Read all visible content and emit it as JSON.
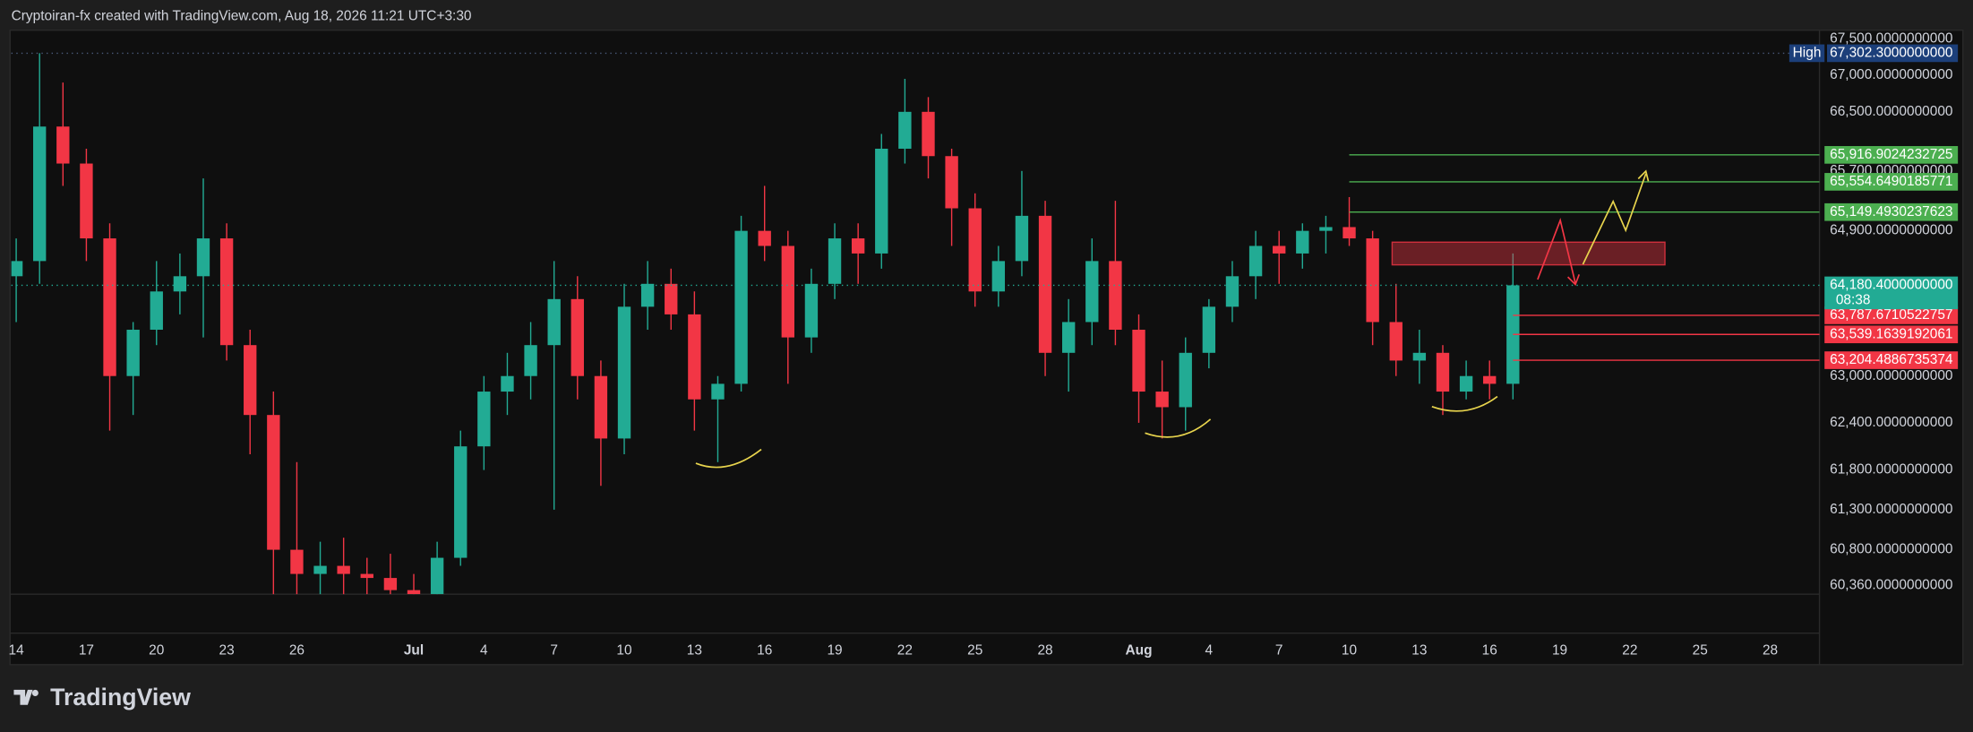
{
  "header": "Cryptoiran-fx created with TradingView.com, Aug 18, 2026 11:21 UTC+3:30",
  "footer_logo": "TradingView",
  "chart_data": {
    "type": "candlestick",
    "log_scale": true,
    "up_color": "#22ab94",
    "down_color": "#f23645",
    "x": [
      "2026-06-14",
      "2026-06-15",
      "2026-06-16",
      "2026-06-17",
      "2026-06-18",
      "2026-06-19",
      "2026-06-20",
      "2026-06-21",
      "2026-06-22",
      "2026-06-23",
      "2026-06-24",
      "2026-06-25",
      "2026-06-26",
      "2026-06-27",
      "2026-06-28",
      "2026-06-29",
      "2026-06-30",
      "2026-07-01",
      "2026-07-02",
      "2026-07-03",
      "2026-07-04",
      "2026-07-05",
      "2026-07-06",
      "2026-07-07",
      "2026-07-08",
      "2026-07-09",
      "2026-07-10",
      "2026-07-11",
      "2026-07-12",
      "2026-07-13",
      "2026-07-14",
      "2026-07-15",
      "2026-07-16",
      "2026-07-17",
      "2026-07-18",
      "2026-07-19",
      "2026-07-20",
      "2026-07-21",
      "2026-07-22",
      "2026-07-23",
      "2026-07-24",
      "2026-07-25",
      "2026-07-26",
      "2026-07-27",
      "2026-07-28",
      "2026-07-29",
      "2026-07-30",
      "2026-07-31",
      "2026-08-01",
      "2026-08-02",
      "2026-08-03",
      "2026-08-04",
      "2026-08-05",
      "2026-08-06",
      "2026-08-07",
      "2026-08-08",
      "2026-08-09",
      "2026-08-10",
      "2026-08-11",
      "2026-08-12",
      "2026-08-13",
      "2026-08-14",
      "2026-08-15",
      "2026-08-16",
      "2026-08-17"
    ],
    "open": [
      64300,
      64500,
      66300,
      65800,
      64800,
      63000,
      63600,
      64100,
      64300,
      64800,
      63400,
      62500,
      60800,
      60500,
      60600,
      60500,
      60450,
      60300,
      60250,
      60700,
      62100,
      62800,
      63000,
      63400,
      64000,
      63000,
      62200,
      63900,
      64200,
      63800,
      62700,
      62900,
      64900,
      64700,
      63500,
      64200,
      64800,
      64600,
      66000,
      66500,
      65900,
      65200,
      64100,
      64500,
      65100,
      63300,
      63700,
      64500,
      63600,
      62800,
      62600,
      63300,
      63900,
      64300,
      64700,
      64600,
      64900,
      64950,
      64800,
      63700,
      63200,
      63300,
      62800,
      63000,
      62900
    ],
    "high": [
      64800,
      67302.3,
      66900,
      66000,
      65000,
      63700,
      64500,
      64600,
      65600,
      65000,
      63600,
      62800,
      61900,
      60900,
      60950,
      60700,
      60750,
      60500,
      60900,
      62300,
      63000,
      63300,
      63700,
      64500,
      64300,
      63200,
      64200,
      64500,
      64400,
      64100,
      63000,
      65100,
      65500,
      64900,
      64400,
      65000,
      65000,
      66200,
      66950,
      66700,
      66000,
      65400,
      64700,
      65700,
      65300,
      64000,
      64800,
      65300,
      63800,
      63200,
      63500,
      64000,
      64500,
      64900,
      64900,
      65000,
      65100,
      65350,
      64900,
      64200,
      63600,
      63400,
      63200,
      63200,
      64600
    ],
    "low": [
      63700,
      64200,
      65500,
      64500,
      62300,
      62500,
      63400,
      63800,
      63500,
      63200,
      62000,
      60100,
      60200,
      60150,
      60200,
      60150,
      60100,
      60100,
      60100,
      60600,
      61800,
      62500,
      62700,
      61300,
      62700,
      61600,
      62000,
      63600,
      63600,
      62300,
      61900,
      62800,
      64500,
      62900,
      63300,
      64000,
      64200,
      64400,
      65800,
      65600,
      64700,
      63900,
      63900,
      64300,
      63000,
      62800,
      63400,
      63400,
      62400,
      62200,
      62300,
      63100,
      63700,
      64000,
      64200,
      64400,
      64600,
      64700,
      63400,
      63000,
      62900,
      62500,
      62700,
      62700,
      62700
    ],
    "close": [
      64500,
      66300,
      65800,
      64800,
      63000,
      63600,
      64100,
      64300,
      64800,
      63400,
      62500,
      60800,
      60500,
      60600,
      60500,
      60450,
      60300,
      60250,
      60700,
      62100,
      62800,
      63000,
      63400,
      64000,
      63000,
      62200,
      63900,
      64200,
      63800,
      62700,
      62900,
      64900,
      64700,
      63500,
      64200,
      64800,
      64600,
      66000,
      66500,
      65900,
      65200,
      64100,
      64500,
      65100,
      63300,
      63700,
      64500,
      63600,
      62800,
      62600,
      63300,
      63900,
      64300,
      64700,
      64600,
      64900,
      64950,
      64800,
      63700,
      63200,
      63300,
      62800,
      63000,
      62900,
      64180.4
    ],
    "xlim": [
      "2026-06-13T19:00Z",
      "2026-08-28T17:00Z"
    ],
    "ylim": [
      60250,
      67620
    ],
    "xticks": [
      {
        "value": "2026-06-14",
        "label": "14"
      },
      {
        "value": "2026-06-17",
        "label": "17"
      },
      {
        "value": "2026-06-20",
        "label": "20"
      },
      {
        "value": "2026-06-23",
        "label": "23"
      },
      {
        "value": "2026-06-26",
        "label": "26"
      },
      {
        "value": "2026-07-01",
        "label": "Jul"
      },
      {
        "value": "2026-07-04",
        "label": "4"
      },
      {
        "value": "2026-07-07",
        "label": "7"
      },
      {
        "value": "2026-07-10",
        "label": "10"
      },
      {
        "value": "2026-07-13",
        "label": "13"
      },
      {
        "value": "2026-07-16",
        "label": "16"
      },
      {
        "value": "2026-07-19",
        "label": "19"
      },
      {
        "value": "2026-07-22",
        "label": "22"
      },
      {
        "value": "2026-07-25",
        "label": "25"
      },
      {
        "value": "2026-07-28",
        "label": "28"
      },
      {
        "value": "2026-08-01",
        "label": "Aug"
      },
      {
        "value": "2026-08-04",
        "label": "4"
      },
      {
        "value": "2026-08-07",
        "label": "7"
      },
      {
        "value": "2026-08-10",
        "label": "10"
      },
      {
        "value": "2026-08-13",
        "label": "13"
      },
      {
        "value": "2026-08-16",
        "label": "16"
      },
      {
        "value": "2026-08-19",
        "label": "19"
      },
      {
        "value": "2026-08-22",
        "label": "22"
      },
      {
        "value": "2026-08-25",
        "label": "25"
      },
      {
        "value": "2026-08-28",
        "label": "28"
      }
    ],
    "yticks": [
      {
        "value": 67500,
        "label": "67,500.0000000000"
      },
      {
        "value": 67000,
        "label": "67,000.0000000000"
      },
      {
        "value": 66500,
        "label": "66,500.0000000000"
      },
      {
        "value": 65700,
        "label": "65,700.0000000000"
      },
      {
        "value": 64900,
        "label": "64,900.0000000000"
      },
      {
        "value": 63000,
        "label": "63,000.0000000000"
      },
      {
        "value": 62400,
        "label": "62,400.0000000000"
      },
      {
        "value": 61800,
        "label": "61,800.0000000000"
      },
      {
        "value": 61300,
        "label": "61,300.0000000000"
      },
      {
        "value": 60800,
        "label": "60,800.0000000000"
      },
      {
        "value": 60360,
        "label": "60,360.0000000000"
      }
    ],
    "high_marker": {
      "name": "High",
      "value": 67302.3,
      "label": "67,302.3000000000",
      "color": "#1c3f7a"
    },
    "last_price": {
      "value": 64180.4,
      "label": "64,180.4000000000",
      "countdown": "08:38",
      "color": "#22ab94"
    },
    "levels": [
      {
        "value": 65916.9024232725,
        "label": "65,916.9024232725",
        "color": "#4caf50",
        "start": "2026-08-10"
      },
      {
        "value": 65554.6490185771,
        "label": "65,554.6490185771",
        "color": "#4caf50",
        "start": "2026-08-10"
      },
      {
        "value": 65149.4930237623,
        "label": "65,149.4930237623",
        "color": "#4caf50",
        "start": "2026-08-10"
      },
      {
        "value": 63787.6710522757,
        "label": "63,787.6710522757",
        "color": "#f23645",
        "start": "2026-08-17"
      },
      {
        "value": 63539.1639192061,
        "label": "63,539.1639192061",
        "color": "#f23645",
        "start": "2026-08-17"
      },
      {
        "value": 63204.4886735374,
        "label": "63,204.4886735374",
        "color": "#f23645",
        "start": "2026-08-17"
      }
    ],
    "zone": {
      "top": 64750,
      "bottom": 64450,
      "start": "2026-08-11T20:00Z",
      "end": "2026-08-23T12:00Z",
      "color": "#f23645"
    }
  }
}
